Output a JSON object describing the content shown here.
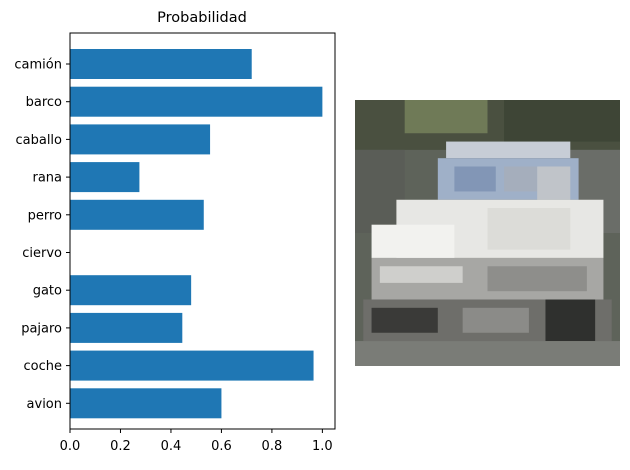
{
  "chart_data": {
    "type": "bar",
    "orientation": "horizontal",
    "title": "Probabilidad",
    "categories": [
      "camión",
      "barco",
      "caballo",
      "rana",
      "perro",
      "ciervo",
      "gato",
      "pajaro",
      "coche",
      "avion"
    ],
    "values": [
      0.72,
      1.0,
      0.555,
      0.275,
      0.53,
      0.0,
      0.48,
      0.445,
      0.965,
      0.6
    ],
    "xlim": [
      0,
      1.05
    ],
    "xticks": [
      "0.0",
      "0.2",
      "0.4",
      "0.6",
      "0.8",
      "1.0"
    ],
    "bar_color": "#1f77b4",
    "grid": false
  },
  "image": {
    "description_icon": "car-photo-thumbnail"
  }
}
